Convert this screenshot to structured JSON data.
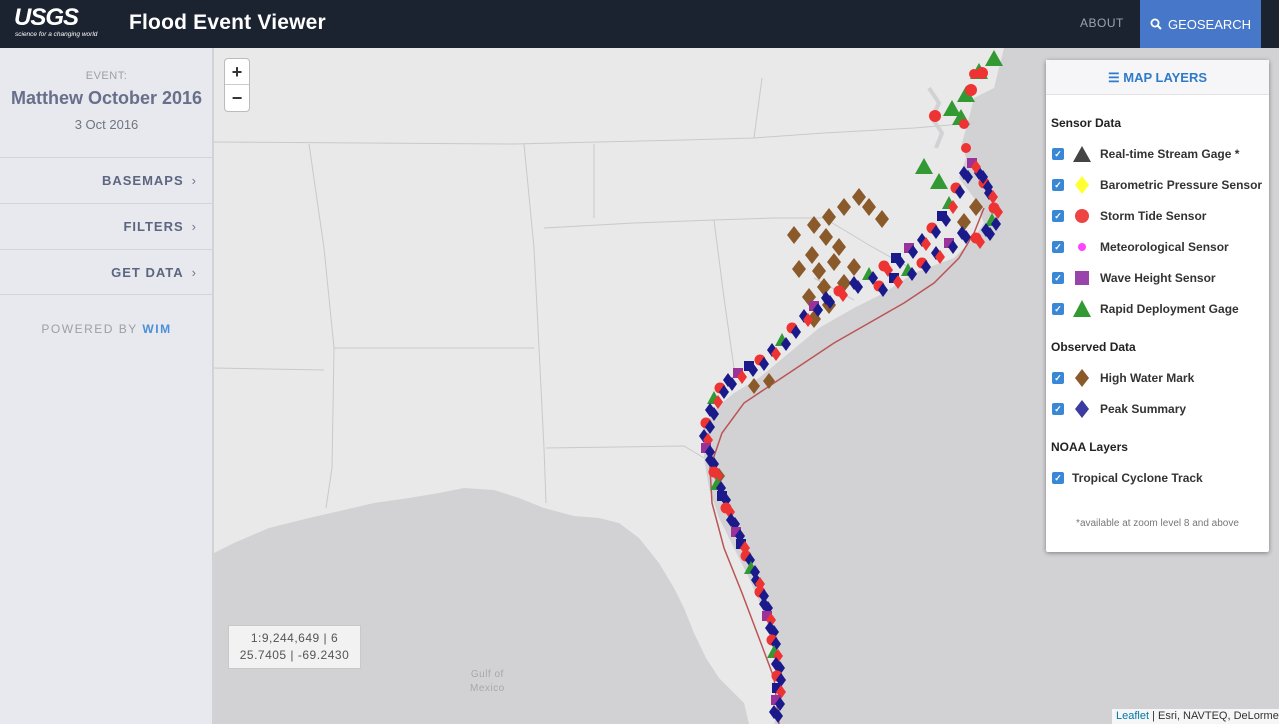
{
  "header": {
    "logo_text": "USGS",
    "logo_tagline": "science for a changing world",
    "app_title": "Flood Event Viewer",
    "about_label": "ABOUT",
    "geosearch_label": "GEOSEARCH",
    "geosearch_icon": "search-icon"
  },
  "sidebar": {
    "event_label": "EVENT:",
    "event_name": "Matthew October 2016",
    "event_date": "3 Oct 2016",
    "items": [
      {
        "label": "BASEMAPS"
      },
      {
        "label": "FILTERS"
      },
      {
        "label": "GET DATA"
      }
    ],
    "powered_prefix": "POWERED BY",
    "powered_brand": "WIM"
  },
  "map": {
    "zoom_in": "+",
    "zoom_out": "−",
    "scale_line": "1:9,244,649 | 6",
    "coord_line": "25.7405 | -69.2430",
    "gulf_label_1": "Gulf of",
    "gulf_label_2": "Mexico",
    "attribution_link": "Leaflet",
    "attribution_text": " | Esri, NAVTEQ, DeLorme"
  },
  "layers_panel": {
    "title": "MAP LAYERS",
    "groups": [
      {
        "title": "Sensor Data"
      },
      {
        "title": "Observed Data"
      },
      {
        "title": "NOAA Layers"
      }
    ],
    "sensor_items": [
      {
        "label": "Real-time Stream Gage *",
        "symbol": "triangle",
        "color": "#444444"
      },
      {
        "label": "Barometric Pressure Sensor",
        "symbol": "diamond",
        "color": "#ffff33"
      },
      {
        "label": "Storm Tide Sensor",
        "symbol": "circle",
        "color": "#ee4444"
      },
      {
        "label": "Meteorological Sensor",
        "symbol": "small-circle",
        "color": "#ff44ff"
      },
      {
        "label": "Wave Height Sensor",
        "symbol": "square",
        "color": "#9944aa"
      },
      {
        "label": "Rapid Deployment Gage",
        "symbol": "triangle",
        "color": "#339933"
      }
    ],
    "observed_items": [
      {
        "label": "High Water Mark",
        "symbol": "diamond",
        "color": "#8b5a2b"
      },
      {
        "label": "Peak Summary",
        "symbol": "diamond",
        "color": "#3c3ca0"
      }
    ],
    "noaa_items": [
      {
        "label": "Tropical Cyclone Track"
      }
    ],
    "footnote": "*available at zoom level 8 and above"
  }
}
